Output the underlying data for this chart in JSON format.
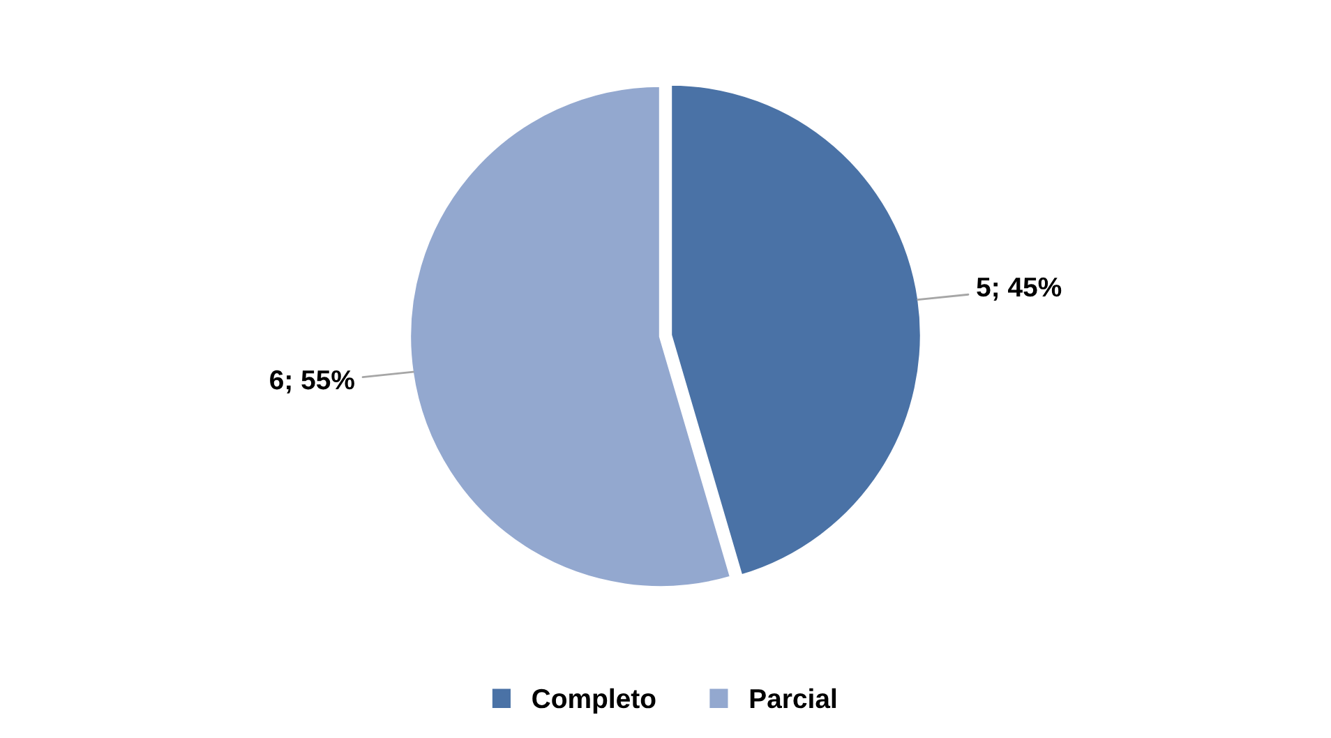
{
  "chart_data": {
    "type": "pie",
    "categories": [
      "Completo",
      "Parcial"
    ],
    "values": [
      5,
      6
    ],
    "colors": [
      "#4a72a6",
      "#93a8cf"
    ],
    "value_labels": [
      "5; 45%",
      "6; 55%"
    ],
    "legend": "bottom"
  }
}
